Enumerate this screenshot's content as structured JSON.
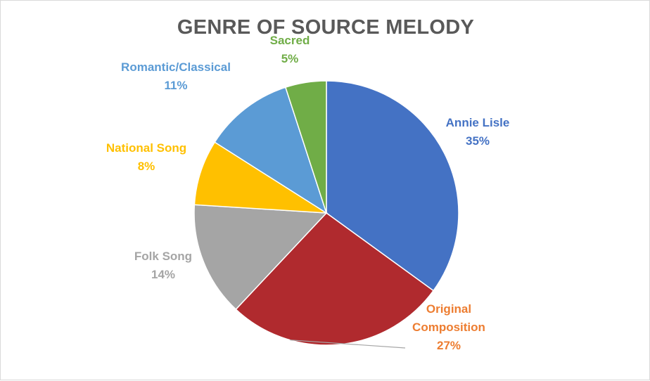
{
  "chart_data": {
    "type": "pie",
    "title": "GENRE OF SOURCE MELODY",
    "start_angle_deg": 0,
    "direction": "clockwise",
    "slices": [
      {
        "name": "Annie Lisle",
        "value": 35,
        "label": "35%",
        "color": "#4472C4"
      },
      {
        "name": "Original Composition",
        "name_lines": [
          "Original",
          "Composition"
        ],
        "value": 27,
        "label": "27%",
        "color": "#B02A2E",
        "label_color": "#ED7D31"
      },
      {
        "name": "Folk Song",
        "value": 14,
        "label": "14%",
        "color": "#A5A5A5"
      },
      {
        "name": "National Song",
        "value": 8,
        "label": "8%",
        "color": "#FFC000"
      },
      {
        "name": "Romantic/Classical",
        "value": 11,
        "label": "11%",
        "color": "#5B9BD5"
      },
      {
        "name": "Sacred",
        "value": 5,
        "label": "5%",
        "color": "#70AD47"
      }
    ],
    "legend": "none",
    "data_labels": "outside, category name and percentage"
  }
}
